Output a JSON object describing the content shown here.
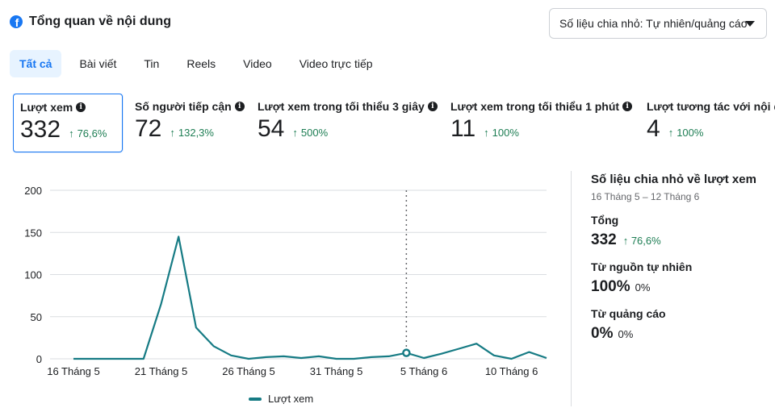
{
  "header": {
    "title": "Tổng quan về nội dung",
    "icon": "facebook-icon"
  },
  "breakdown_select": {
    "value": "Số liệu chia nhỏ: Tự nhiên/quảng cáo"
  },
  "tabs": [
    {
      "label": "Tất cả",
      "active": true
    },
    {
      "label": "Bài viết",
      "active": false
    },
    {
      "label": "Tin",
      "active": false
    },
    {
      "label": "Reels",
      "active": false
    },
    {
      "label": "Video",
      "active": false
    },
    {
      "label": "Video trực tiếp",
      "active": false
    }
  ],
  "metrics": [
    {
      "label": "Lượt xem",
      "value": "332",
      "change": "76,6%",
      "selected": true
    },
    {
      "label": "Số người tiếp cận",
      "value": "72",
      "change": "132,3%",
      "selected": false
    },
    {
      "label": "Lượt xem trong tối thiểu 3 giây",
      "value": "54",
      "change": "500%",
      "selected": false
    },
    {
      "label": "Lượt xem trong tối thiểu 1 phút",
      "value": "11",
      "change": "100%",
      "selected": false
    },
    {
      "label": "Lượt tương tác với nội dung",
      "value": "4",
      "change": "100%",
      "selected": false
    }
  ],
  "chart_data": {
    "type": "line",
    "y_ticks": [
      0,
      50,
      100,
      150,
      200
    ],
    "ylim": [
      0,
      200
    ],
    "x_tick_labels": [
      "16 Tháng 5",
      "21 Tháng 5",
      "26 Tháng 5",
      "31 Tháng 5",
      "5 Tháng 6",
      "10 Tháng 6"
    ],
    "x_tick_index": [
      0,
      5,
      10,
      15,
      20,
      25
    ],
    "grid": true,
    "legend_position": "bottom",
    "series": [
      {
        "name": "Lượt xem",
        "color": "#167b84",
        "values": [
          0,
          0,
          0,
          0,
          0,
          65,
          145,
          37,
          15,
          4,
          0,
          2,
          3,
          1,
          3,
          0,
          0,
          2,
          3,
          7,
          1,
          6,
          12,
          18,
          4,
          0,
          8,
          1
        ]
      }
    ],
    "highlight_index": 19
  },
  "breakdown_panel": {
    "title": "Số liệu chia nhỏ về lượt xem",
    "date_range": "16 Tháng 5 – 12 Tháng 6",
    "total": {
      "label": "Tổng",
      "value": "332",
      "change": "76,6%"
    },
    "organic": {
      "label": "Từ nguồn tự nhiên",
      "value": "100%",
      "pct": "0%"
    },
    "ads": {
      "label": "Từ quảng cáo",
      "value": "0%",
      "pct": "0%"
    }
  }
}
